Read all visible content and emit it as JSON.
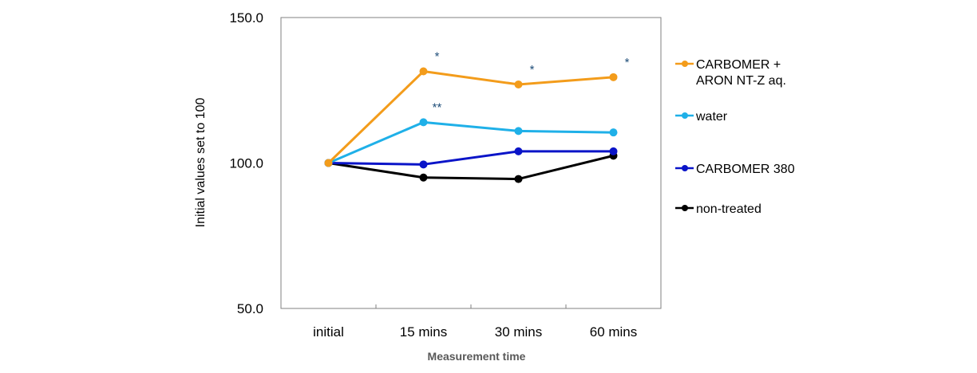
{
  "chart_data": {
    "type": "line",
    "title": "",
    "xlabel": "Measurement time",
    "ylabel": "Initial values set to 100",
    "categories": [
      "initial",
      "15 mins",
      "30 mins",
      "60 mins"
    ],
    "ylim": [
      50,
      150
    ],
    "yticks": [
      "50.0",
      "100.0",
      "150.0"
    ],
    "ytick_values": [
      50,
      100,
      150
    ],
    "grid": false,
    "legend_position": "right",
    "series": [
      {
        "name": "CARBOMER + ARON NT-Z aq.",
        "name_lines": [
          "CARBOMER +",
          "ARON NT-Z aq."
        ],
        "color": "#f39c1b",
        "values": [
          100.0,
          131.5,
          127.0,
          129.5
        ]
      },
      {
        "name": "water",
        "name_lines": [
          "water"
        ],
        "color": "#1fb0e8",
        "values": [
          100.0,
          114.0,
          111.0,
          110.5
        ]
      },
      {
        "name": "CARBOMER 380",
        "name_lines": [
          "CARBOMER 380"
        ],
        "color": "#0a14c8",
        "values": [
          100.0,
          99.5,
          104.0,
          104.0
        ]
      },
      {
        "name": "non-treated",
        "name_lines": [
          "non-treated"
        ],
        "color": "#000000",
        "values": [
          100.0,
          95.0,
          94.5,
          102.5
        ]
      }
    ],
    "annotations": [
      {
        "text": "*",
        "series": 0,
        "category": 1
      },
      {
        "text": "*",
        "series": 0,
        "category": 2
      },
      {
        "text": "*",
        "series": 0,
        "category": 3
      },
      {
        "text": "**",
        "series": 1,
        "category": 1
      }
    ]
  }
}
